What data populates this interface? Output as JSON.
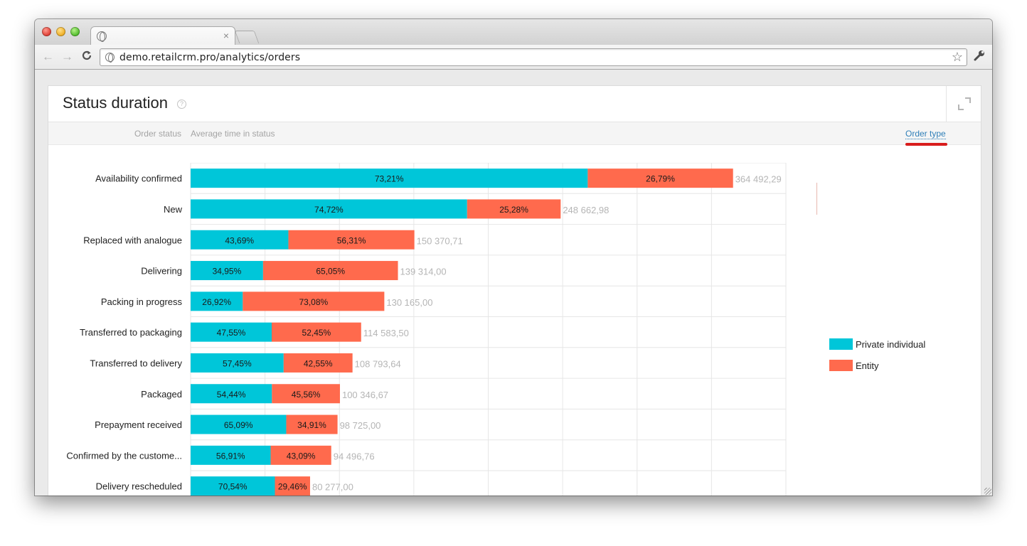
{
  "browser": {
    "url": "demo.retailcrm.pro/analytics/orders",
    "tab_close": "×",
    "back": "←",
    "forward": "→",
    "reload": "C",
    "star": "☆",
    "wrench": "🔧"
  },
  "card": {
    "title": "Status duration",
    "help": "?",
    "col_status": "Order status",
    "col_avg": "Average time in status",
    "order_type_link": "Order type"
  },
  "colors": {
    "private": "#00c6d9",
    "entity": "#ff6a4d",
    "total_label": "#b5b5b5",
    "grid": "#e6e6e6"
  },
  "chart_data": {
    "type": "bar",
    "orientation": "horizontal",
    "stacked": true,
    "normalized_segment_labels": true,
    "categories": [
      "Availability confirmed",
      "New",
      "Replaced with analogue",
      "Delivering",
      "Packing in progress",
      "Transferred to packaging",
      "Transferred to delivery",
      "Packaged",
      "Prepayment received",
      "Confirmed by the custome...",
      "Delivery rescheduled"
    ],
    "totals": [
      364492.29,
      248662.98,
      150370.71,
      139314.0,
      130165.0,
      114583.5,
      108793.64,
      100346.67,
      98725.0,
      94496.76,
      80277.0
    ],
    "total_labels": [
      "364 492,29",
      "248 662,98",
      "150 370,71",
      "139 314,00",
      "130 165,00",
      "114 583,50",
      "108 793,64",
      "100 346,67",
      "98 725,00",
      "94 496,76",
      "80 277,00"
    ],
    "series": [
      {
        "name": "Private individual",
        "percent_labels": [
          "73,21%",
          "74,72%",
          "43,69%",
          "34,95%",
          "26,92%",
          "47,55%",
          "57,45%",
          "54,44%",
          "65,09%",
          "56,91%",
          "70,54%"
        ],
        "percents": [
          73.21,
          74.72,
          43.69,
          34.95,
          26.92,
          47.55,
          57.45,
          54.44,
          65.09,
          56.91,
          70.54
        ]
      },
      {
        "name": "Entity",
        "percent_labels": [
          "26,79%",
          "25,28%",
          "56,31%",
          "65,05%",
          "73,08%",
          "52,45%",
          "42,55%",
          "45,56%",
          "34,91%",
          "43,09%",
          "29,46%"
        ],
        "percents": [
          26.79,
          25.28,
          56.31,
          65.05,
          73.08,
          52.45,
          42.55,
          45.56,
          34.91,
          43.09,
          29.46
        ]
      }
    ],
    "xlim": [
      0,
      400000
    ],
    "grid": true,
    "legend": "right"
  }
}
